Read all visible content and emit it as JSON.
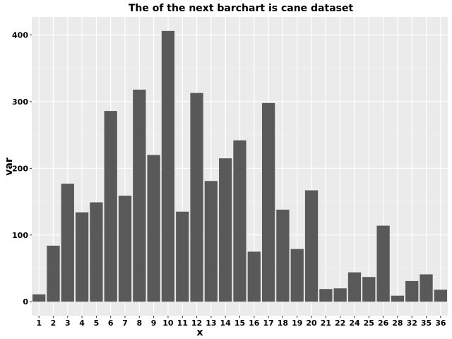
{
  "chart_data": {
    "type": "bar",
    "title": "The of the next barchart is cane dataset",
    "xlabel": "x",
    "ylabel": "var",
    "categories": [
      "1",
      "2",
      "3",
      "4",
      "5",
      "6",
      "7",
      "8",
      "9",
      "10",
      "11",
      "12",
      "13",
      "14",
      "15",
      "16",
      "17",
      "18",
      "19",
      "20",
      "21",
      "22",
      "24",
      "25",
      "26",
      "28",
      "32",
      "35",
      "36"
    ],
    "values": [
      11,
      84,
      177,
      134,
      149,
      286,
      159,
      318,
      220,
      406,
      135,
      313,
      181,
      215,
      242,
      75,
      298,
      138,
      79,
      167,
      19,
      20,
      44,
      37,
      114,
      9,
      31,
      41,
      18
    ],
    "yticks": [
      0,
      100,
      200,
      300,
      400
    ],
    "ylim": [
      -21,
      427
    ],
    "grid": true,
    "colors": {
      "bar": "#595959",
      "panel": "#ebebeb",
      "grid_major": "#ffffff",
      "grid_minor": "#f5f5f5",
      "tick": "#333333"
    }
  }
}
